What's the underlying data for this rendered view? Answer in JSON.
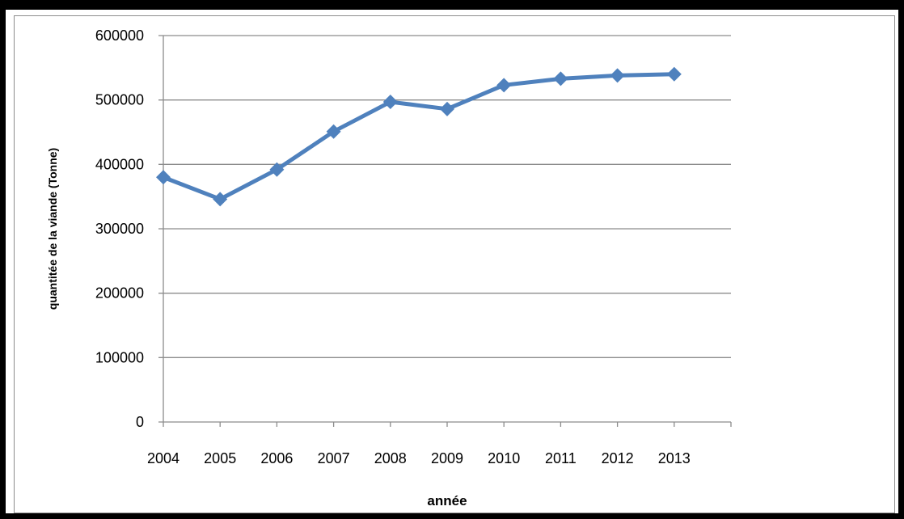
{
  "chart_data": {
    "type": "line",
    "title": "",
    "xlabel": "année",
    "ylabel": "quantitée de la viande (Tonne)",
    "categories": [
      "2004",
      "2005",
      "2006",
      "2007",
      "2008",
      "2009",
      "2010",
      "2011",
      "2012",
      "2013"
    ],
    "series": [
      {
        "values": [
          380000,
          346000,
          392000,
          451000,
          497000,
          486000,
          523000,
          533000,
          538000,
          540000
        ],
        "color": "#4f81bd",
        "marker": "diamond"
      }
    ],
    "ylim": [
      0,
      600000
    ],
    "yticks": [
      "0",
      "100000",
      "200000",
      "300000",
      "400000",
      "500000",
      "600000"
    ],
    "grid": true,
    "legend": "none"
  }
}
